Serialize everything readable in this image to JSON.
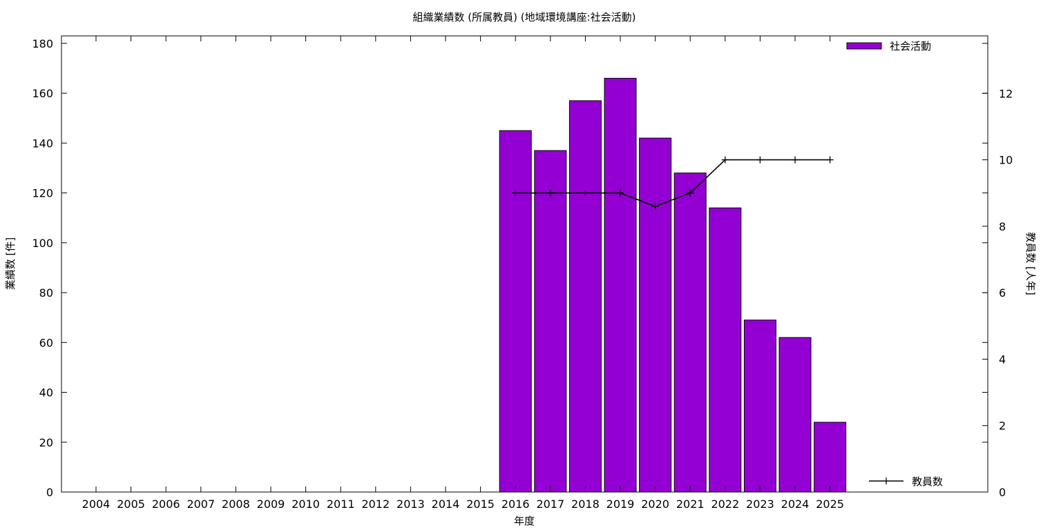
{
  "chart_data": {
    "type": "bar",
    "title": "組織業績数 (所属教員) (地域環境講座:社会活動)",
    "xlabel": "年度",
    "ylabel": "業績数 [件]",
    "y2label": "教員数 [人年]",
    "categories": [
      "2004",
      "2005",
      "2006",
      "2007",
      "2008",
      "2009",
      "2010",
      "2011",
      "2012",
      "2013",
      "2014",
      "2015",
      "2016",
      "2017",
      "2018",
      "2019",
      "2020",
      "2021",
      "2022",
      "2023",
      "2024",
      "2025"
    ],
    "series": [
      {
        "name": "社会活動",
        "kind": "bar",
        "axis": "left",
        "color": "#9400d3",
        "values": [
          null,
          null,
          null,
          null,
          null,
          null,
          null,
          null,
          null,
          null,
          null,
          null,
          145,
          137,
          157,
          166,
          142,
          128,
          114,
          69,
          62,
          28
        ]
      },
      {
        "name": "教員数",
        "kind": "line",
        "axis": "right",
        "color": "#000000",
        "values": [
          null,
          null,
          null,
          null,
          null,
          null,
          null,
          null,
          null,
          null,
          null,
          null,
          9,
          9,
          9,
          9,
          8.6,
          9,
          10,
          10,
          10,
          10
        ]
      }
    ],
    "ylim": [
      0,
      183
    ],
    "yticks": [
      0,
      20,
      40,
      60,
      80,
      100,
      120,
      140,
      160,
      180
    ],
    "y2lim": [
      0,
      13.73
    ],
    "y2ticks": [
      0,
      2,
      4,
      6,
      8,
      10,
      12
    ],
    "grid": false,
    "legend": [
      "top-right",
      "bottom-right"
    ]
  }
}
